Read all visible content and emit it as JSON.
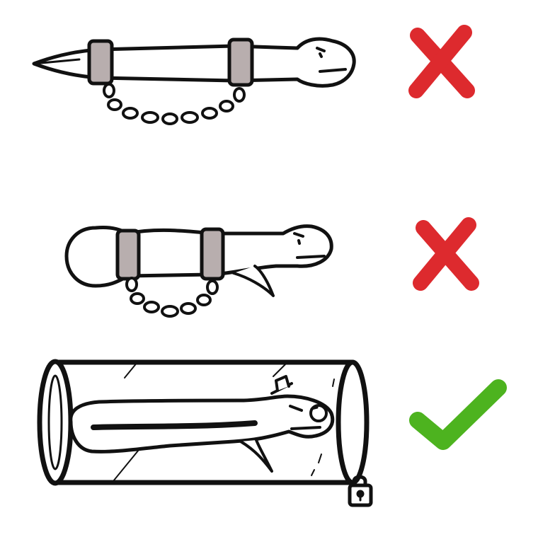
{
  "panels": [
    {
      "id": "handcuffed-slim-creature",
      "verdict": "wrong",
      "verdict_icon": "red-x-icon"
    },
    {
      "id": "handcuffed-round-creature",
      "verdict": "wrong",
      "verdict_icon": "red-x-icon"
    },
    {
      "id": "creature-in-locked-tube",
      "verdict": "right",
      "verdict_icon": "green-check-icon"
    }
  ],
  "colors": {
    "wrong": "#dd2a2e",
    "right": "#4db31f",
    "cuff": "#b8aeae",
    "ink": "#111111",
    "background": "#ffffff"
  }
}
